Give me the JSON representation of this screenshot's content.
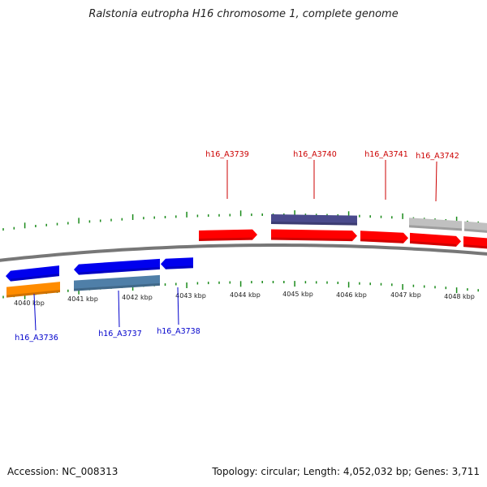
{
  "header": {
    "title": "Ralstonia eutropha H16 chromosome 1, complete genome"
  },
  "footer": {
    "accession": "Accession: NC_008313",
    "summary": "Topology: circular; Length: 4,052,032 bp; Genes: 3,711"
  },
  "map": {
    "kbp_ticks": [
      "4040 kbp",
      "4041 kbp",
      "4042 kbp",
      "4043 kbp",
      "4044 kbp",
      "4045 kbp",
      "4046 kbp",
      "4047 kbp",
      "4048 kbp"
    ],
    "genes_forward": [
      {
        "label": "h16_A3739",
        "color": "#e00000"
      },
      {
        "label": "h16_A3740",
        "color": "#e00000"
      },
      {
        "label": "h16_A3741",
        "color": "#e00000"
      },
      {
        "label": "h16_A3742",
        "color": "#e00000"
      }
    ],
    "genes_reverse": [
      {
        "label": "h16_A3736",
        "color": "#1a1ab8"
      },
      {
        "label": "h16_A3737",
        "color": "#1a1ab8"
      },
      {
        "label": "h16_A3738",
        "color": "#1a1ab8"
      }
    ],
    "colors": {
      "forward_label": "#cc0000",
      "reverse_label": "#0000cc",
      "tick": "#1a8a1a",
      "backbone": "#777777",
      "cds_forward": "#ff0000",
      "cds_reverse": "#0000ee",
      "rna": "#ff8c00",
      "feature_purple": "#4a4a8c",
      "feature_steel": "#4f7fa8",
      "feature_grey": "#c0c0c0"
    }
  }
}
